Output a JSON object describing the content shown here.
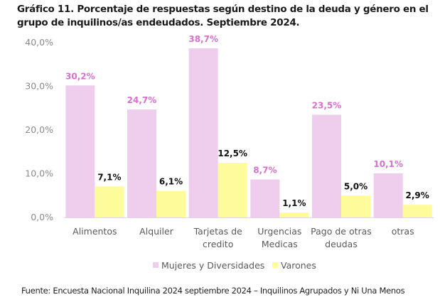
{
  "chart_data": {
    "type": "bar",
    "title": "Gráfico 11. Porcentaje de respuestas según destino de la deuda y género en el grupo de inquilinos/as endeudados. Septiembre 2024.",
    "categories": [
      [
        "Alimentos"
      ],
      [
        "Alquiler"
      ],
      [
        "Tarjetas de",
        "credito"
      ],
      [
        "Urgencias",
        "Medicas"
      ],
      [
        "Pago de otras",
        "deudas"
      ],
      [
        "otras"
      ]
    ],
    "series": [
      {
        "name": "Mujeres y Diversidades",
        "color": "#efcdec",
        "label_color": "#d86fd0",
        "values": [
          30.2,
          24.7,
          38.7,
          8.7,
          23.5,
          10.1
        ],
        "labels": [
          "30,2%",
          "24,7%",
          "38,7%",
          "8,7%",
          "23,5%",
          "10,1%"
        ]
      },
      {
        "name": "Varones",
        "color": "#fdfb9a",
        "label_color": "#111111",
        "values": [
          7.1,
          6.1,
          12.5,
          1.1,
          5.0,
          2.9
        ],
        "labels": [
          "7,1%",
          "6,1%",
          "12,5%",
          "1,1%",
          "5,0%",
          "2,9%"
        ]
      }
    ],
    "ylim": [
      0,
      40
    ],
    "yticks": [
      0,
      10,
      20,
      30,
      40
    ],
    "ytick_labels": [
      "0,0%",
      "10,0%",
      "20,0%",
      "30,0%",
      "40,0%"
    ],
    "xlabel": "",
    "ylabel": "",
    "grid": false,
    "legend": "bottom-center"
  },
  "source": "Fuente: Encuesta Nacional Inquilina 2024 septiembre 2024 – Inquilinos Agrupados y Ni Una Menos"
}
